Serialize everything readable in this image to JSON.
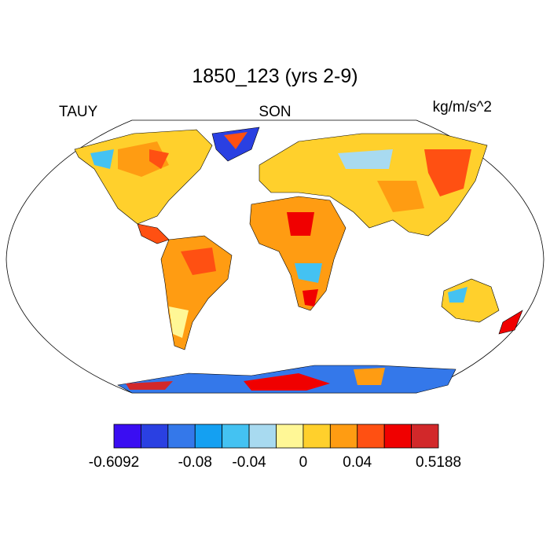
{
  "map": {
    "title": "1850_123 (yrs 2-9)",
    "left_label": "TAUY",
    "center_label": "SON",
    "right_label": "kg/m/s^2",
    "colorbar": {
      "colors": [
        "#3a0df2",
        "#2a40e2",
        "#3478ea",
        "#14a0f2",
        "#44c2f2",
        "#a8daf0",
        "#fff796",
        "#ffd02c",
        "#ff9c12",
        "#ff5012",
        "#f00000",
        "#d2282a"
      ],
      "edge_labels": [
        "-0.6092",
        null,
        null,
        "-0.08",
        null,
        "-0.04",
        null,
        "0",
        null,
        "0.04",
        null,
        null,
        "0.5188"
      ]
    }
  }
}
